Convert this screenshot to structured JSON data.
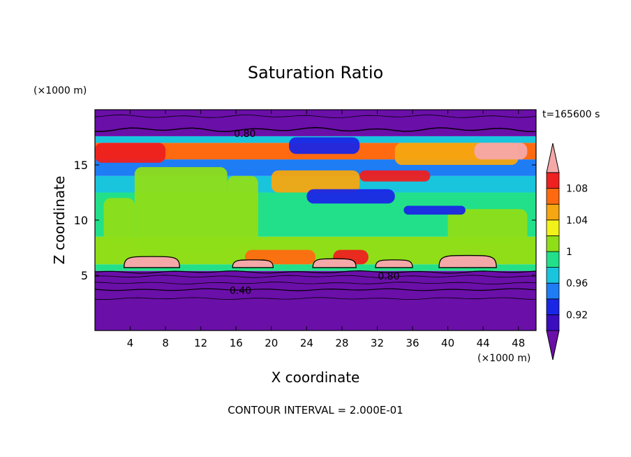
{
  "chart_data": {
    "type": "heatmap",
    "title": "Saturation Ratio",
    "xlabel": "X coordinate",
    "ylabel": "Z coordinate",
    "x_unit": "(×1000 m)",
    "y_unit": "(×1000 m)",
    "time_label": "t=165600 s",
    "footer": "CONTOUR INTERVAL = 2.000E-01",
    "xlim": [
      0,
      50
    ],
    "ylim": [
      0,
      20
    ],
    "x_ticks": [
      4,
      8,
      12,
      16,
      20,
      24,
      28,
      32,
      36,
      40,
      44,
      48
    ],
    "y_ticks": [
      5,
      10,
      15
    ],
    "contour_labels": [
      {
        "text": "0.80",
        "x": 17.0,
        "z": 17.9
      },
      {
        "text": "0.80",
        "x": 33.3,
        "z": 5.0
      },
      {
        "text": "0.40",
        "x": 16.5,
        "z": 3.7
      }
    ],
    "colorbar": {
      "levels": [
        0.9,
        0.92,
        0.94,
        0.96,
        0.98,
        1.0,
        1.02,
        1.04,
        1.06,
        1.08,
        1.1
      ],
      "tick_labels": [
        "1.08",
        "1.04",
        "1",
        "0.96",
        "0.92"
      ],
      "colors": [
        "#6a0fa8",
        "#3a0dbf",
        "#1a26e6",
        "#1e7cf5",
        "#19c4dd",
        "#22e08a",
        "#8fde18",
        "#f2f21a",
        "#f5a610",
        "#ff6a10",
        "#ee2020",
        "#f5a8a8"
      ]
    },
    "bands": [
      {
        "z": [
          0,
          5.4
        ],
        "color": "#6a0fa8"
      },
      {
        "z": [
          5.4,
          6.0
        ],
        "color": "#22e08a"
      },
      {
        "z": [
          6.0,
          8.5
        ],
        "color": "#8fde18"
      },
      {
        "z": [
          8.5,
          12.5
        ],
        "color": "#22e08a"
      },
      {
        "z": [
          12.5,
          14.0
        ],
        "color": "#19c4dd"
      },
      {
        "z": [
          14.0,
          15.5
        ],
        "color": "#1e7cf5"
      },
      {
        "z": [
          15.5,
          17.0
        ],
        "color": "#ff6a10"
      },
      {
        "z": [
          17.0,
          17.6
        ],
        "color": "#19c4dd"
      },
      {
        "z": [
          17.6,
          20
        ],
        "color": "#6a0fa8"
      }
    ],
    "regions": [
      {
        "x": [
          4.5,
          15.0
        ],
        "z": [
          7.0,
          14.8
        ],
        "color": "#8fde18"
      },
      {
        "x": [
          15.0,
          18.5
        ],
        "z": [
          8.0,
          14.0
        ],
        "color": "#8fde18"
      },
      {
        "x": [
          1.0,
          4.5
        ],
        "z": [
          8.0,
          12.0
        ],
        "color": "#8fde18"
      },
      {
        "x": [
          40.0,
          49.0
        ],
        "z": [
          8.0,
          11.0
        ],
        "color": "#8fde18"
      },
      {
        "x": [
          20.0,
          30.0
        ],
        "z": [
          12.5,
          14.5
        ],
        "color": "#f5a610"
      },
      {
        "x": [
          24.0,
          34.0
        ],
        "z": [
          11.5,
          12.8
        ],
        "color": "#1a26e6"
      },
      {
        "x": [
          30.0,
          38.0
        ],
        "z": [
          13.5,
          14.5
        ],
        "color": "#ee2020"
      },
      {
        "x": [
          35.0,
          42.0
        ],
        "z": [
          10.5,
          11.3
        ],
        "color": "#1a26e6"
      },
      {
        "x": [
          22.0,
          30.0
        ],
        "z": [
          16.0,
          17.5
        ],
        "color": "#1a26e6"
      },
      {
        "x": [
          0,
          8.0
        ],
        "z": [
          15.2,
          17.0
        ],
        "color": "#ee2020"
      },
      {
        "x": [
          34.0,
          48.0
        ],
        "z": [
          15.0,
          17.0
        ],
        "color": "#f5a610"
      },
      {
        "x": [
          43.0,
          49.0
        ],
        "z": [
          15.5,
          17.0
        ],
        "color": "#f5a8a8"
      },
      {
        "x": [
          17.0,
          25.0
        ],
        "z": [
          6.0,
          7.3
        ],
        "color": "#ff6a10"
      },
      {
        "x": [
          27.0,
          31.0
        ],
        "z": [
          6.0,
          7.3
        ],
        "color": "#ee2020"
      }
    ],
    "anvils": [
      {
        "x": [
          3.3,
          9.6
        ],
        "z": [
          5.7,
          6.7
        ]
      },
      {
        "x": [
          15.6,
          20.2
        ],
        "z": [
          5.7,
          6.4
        ]
      },
      {
        "x": [
          24.7,
          29.6
        ],
        "z": [
          5.7,
          6.5
        ]
      },
      {
        "x": [
          31.8,
          36.0
        ],
        "z": [
          5.7,
          6.4
        ]
      },
      {
        "x": [
          39.0,
          45.5
        ],
        "z": [
          5.7,
          6.8
        ]
      }
    ]
  }
}
